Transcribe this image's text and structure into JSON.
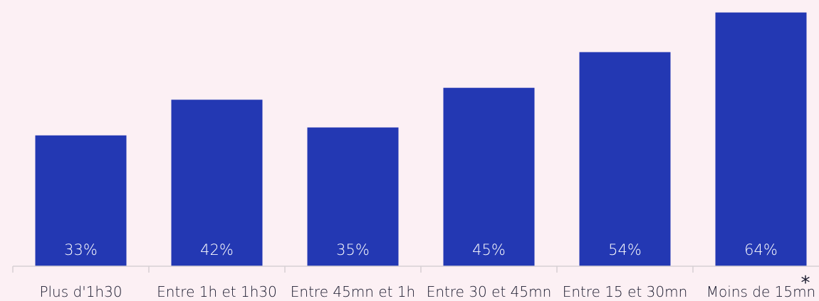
{
  "chart_data": {
    "type": "bar",
    "categories": [
      "Plus d'1h30",
      "Entre 1h et 1h30",
      "Entre 45mn et 1h",
      "Entre 30 et 45mn",
      "Entre 15 et 30mn",
      "Moins de 15mn"
    ],
    "values": [
      33,
      42,
      35,
      45,
      54,
      64
    ],
    "value_labels": [
      "33%",
      "42%",
      "35%",
      "45%",
      "54%",
      "64%"
    ],
    "footnote_marker": "*",
    "ylim": [
      0,
      65
    ],
    "grid": false,
    "colors": {
      "bar": "#2338b3",
      "background": "#fcf0f4",
      "value_text": "#ffffff",
      "tick_text": "#1a1a2e"
    }
  }
}
